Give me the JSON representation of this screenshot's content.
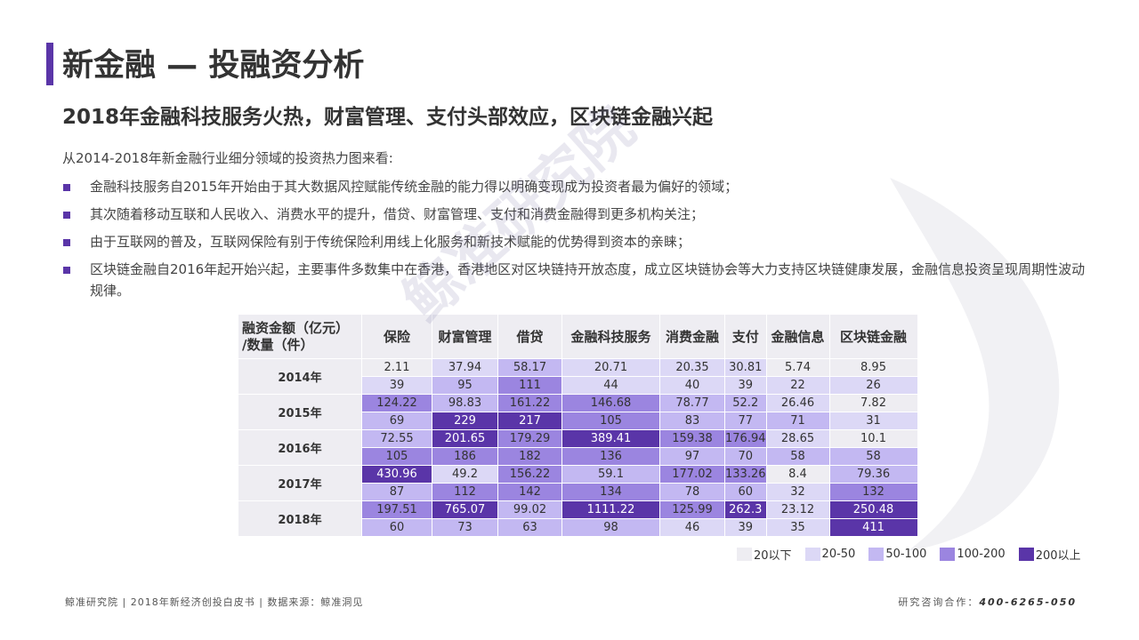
{
  "title": "新金融 — 投融资分析",
  "subtitle": "2018年金融科技服务火热，财富管理、支付头部效应，区块链金融兴起",
  "intro": "从2014-2018年新金融行业细分领域的投资热力图来看:",
  "bullets": [
    "金融科技服务自2015年开始由于其大数据风控赋能传统金融的能力得以明确变现成为投资者最为偏好的领域；",
    "其次随着移动互联和人民收入、消费水平的提升，借贷、财富管理、支付和消费金融得到更多机构关注；",
    "由于互联网的普及，互联网保险有别于传统保险利用线上化服务和新技术赋能的优势得到资本的亲睐；",
    "区块链金融自2016年起开始兴起，主要事件多数集中在香港，香港地区对区块链持开放态度，成立区块链协会等大力支持区块链健康发展，金融信息投资呈现周期性波动规律。"
  ],
  "watermark": "鲸准研究院",
  "table": {
    "corner_line1": "融资金额（亿元）",
    "corner_line2": "/数量（件）",
    "columns": [
      "保险",
      "财富管理",
      "借贷",
      "金融科技服务",
      "消费金融",
      "支付",
      "金融信息",
      "区块链金融"
    ],
    "years": [
      {
        "label": "2014年",
        "amount": [
          "2.11",
          "37.94",
          "58.17",
          "20.71",
          "20.35",
          "30.81",
          "5.74",
          "8.95"
        ],
        "count": [
          "39",
          "95",
          "111",
          "44",
          "40",
          "39",
          "22",
          "26"
        ]
      },
      {
        "label": "2015年",
        "amount": [
          "124.22",
          "98.83",
          "161.22",
          "146.68",
          "78.77",
          "52.2",
          "26.46",
          "7.82"
        ],
        "count": [
          "69",
          "229",
          "217",
          "105",
          "83",
          "77",
          "71",
          "31"
        ]
      },
      {
        "label": "2016年",
        "amount": [
          "72.55",
          "201.65",
          "179.29",
          "389.41",
          "159.38",
          "176.94",
          "28.65",
          "10.1"
        ],
        "count": [
          "105",
          "186",
          "182",
          "136",
          "97",
          "70",
          "58",
          "58"
        ]
      },
      {
        "label": "2017年",
        "amount": [
          "430.96",
          "49.2",
          "156.22",
          "59.1",
          "177.02",
          "133.26",
          "8.4",
          "79.36"
        ],
        "count": [
          "87",
          "112",
          "142",
          "134",
          "78",
          "60",
          "32",
          "132"
        ]
      },
      {
        "label": "2018年",
        "amount": [
          "197.51",
          "765.07",
          "99.02",
          "1111.22",
          "125.99",
          "262.3",
          "23.12",
          "250.48"
        ],
        "count": [
          "60",
          "73",
          "63",
          "98",
          "46",
          "39",
          "35",
          "411"
        ]
      }
    ]
  },
  "legend": [
    {
      "label": "20以下",
      "color": "#eeedf2"
    },
    {
      "label": "20-50",
      "color": "#dcd8f6"
    },
    {
      "label": "50-100",
      "color": "#c3b8f2"
    },
    {
      "label": "100-200",
      "color": "#9b85e0"
    },
    {
      "label": "200以上",
      "color": "#5a35a8"
    }
  ],
  "footer": {
    "left": "鲸准研究院 | 2018年新经济创投白皮书 | 数据来源：鲸准洞见",
    "right_label": "研究咨询合作：",
    "right_phone": "400-6265-050"
  }
}
